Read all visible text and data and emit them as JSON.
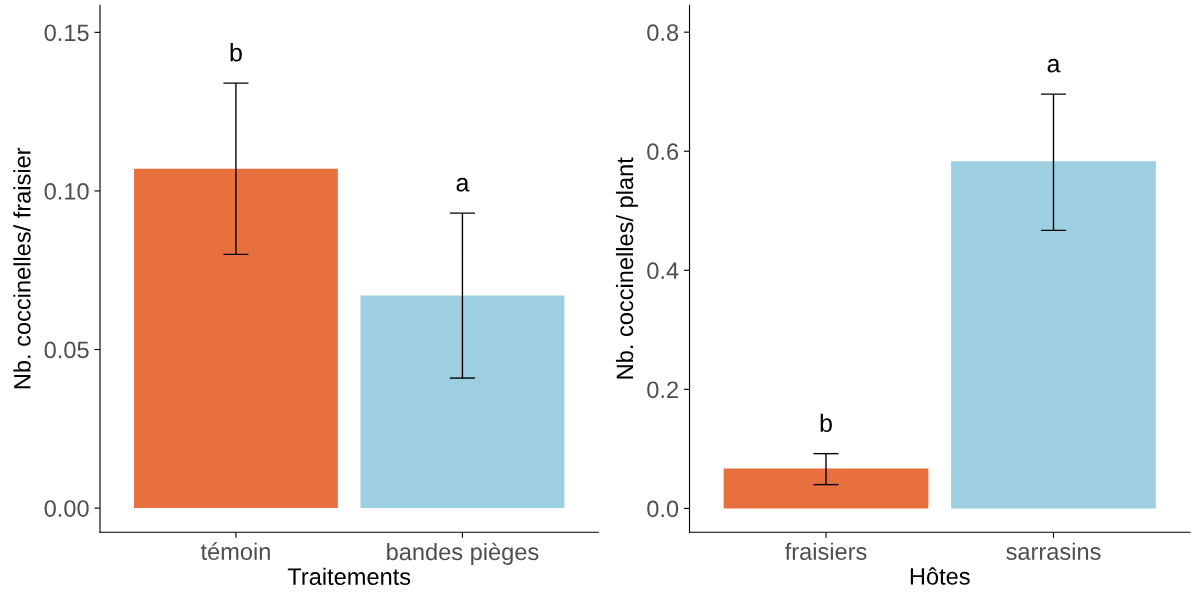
{
  "chart_data": [
    {
      "type": "bar",
      "categories": [
        "témoin",
        "bandes pièges"
      ],
      "values": [
        0.107,
        0.067
      ],
      "errors": [
        [
          0.08,
          0.134
        ],
        [
          0.041,
          0.093
        ]
      ],
      "colors": [
        "#e8703e",
        "#9dcfe0"
      ],
      "xlabel": "Traitements",
      "ylabel": "Nb. coccinelles/ fraisier",
      "ylim": [
        -0.0076,
        0.1585
      ],
      "yticks": [
        {
          "value": 0,
          "label": "0.00"
        },
        {
          "value": 0.05,
          "label": "0.05"
        },
        {
          "value": 0.1,
          "label": "0.10"
        },
        {
          "value": 0.15,
          "label": "0.15"
        }
      ],
      "grid": false,
      "legend": false,
      "annotations": [
        "b",
        "a"
      ]
    },
    {
      "type": "bar",
      "categories": [
        "fraisiers",
        "sarrasins"
      ],
      "values": [
        0.067,
        0.583
      ],
      "errors": [
        [
          0.04,
          0.092
        ],
        [
          0.467,
          0.696
        ]
      ],
      "colors": [
        "#e8703e",
        "#9dcfe0"
      ],
      "xlabel": "Hôtes",
      "ylabel": "Nb. coccinelles/ plant",
      "ylim": [
        -0.04,
        0.845
      ],
      "yticks": [
        {
          "value": 0,
          "label": "0.0"
        },
        {
          "value": 0.2,
          "label": "0.2"
        },
        {
          "value": 0.4,
          "label": "0.4"
        },
        {
          "value": 0.6,
          "label": "0.6"
        },
        {
          "value": 0.8,
          "label": "0.8"
        }
      ],
      "grid": false,
      "legend": false,
      "annotations": [
        "b",
        "a"
      ]
    }
  ]
}
